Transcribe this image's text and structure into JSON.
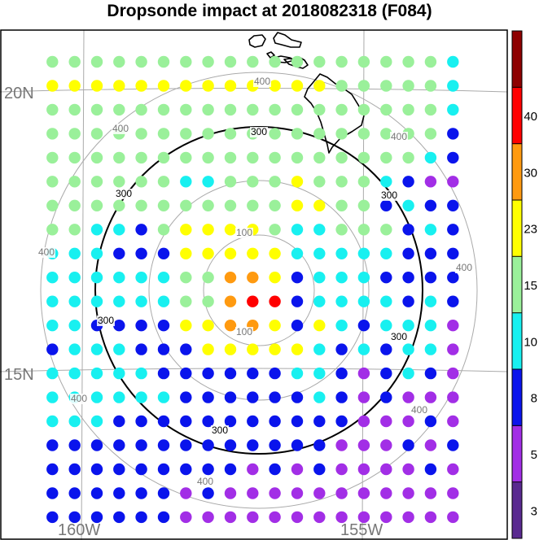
{
  "title": "Dropsonde impact at 2018082318 (F084)",
  "lat_labels": [
    {
      "text": "20N",
      "value": 20
    },
    {
      "text": "15N",
      "value": 15
    }
  ],
  "lon_labels": [
    {
      "text": "160W",
      "value": -160
    },
    {
      "text": "155W",
      "value": -155
    }
  ],
  "range_rings": [
    {
      "label": "100",
      "km": 100
    },
    {
      "label": "200",
      "km": 200
    },
    {
      "label": "300",
      "km": 300
    },
    {
      "label": "400",
      "km": 400
    }
  ],
  "highlight_ring_label": "300",
  "colorbar": {
    "tick_labels": [
      "3",
      "5",
      "8",
      "10",
      "15",
      "23",
      "30",
      "40"
    ],
    "colors": [
      "#5a2a90",
      "#a22ee6",
      "#0a14ec",
      "#18f0f0",
      "#9af09a",
      "#ffff00",
      "#ff9a10",
      "#ff0000",
      "#8e0000"
    ]
  },
  "impact_grid": {
    "rows": 20,
    "cols": 19,
    "cells": [
      ".4444444444444444443",
      ".5555555555555444443",
      ".4444444444444444443",
      ".4444444444444444442",
      ".4444444444444444432",
      ".4444443344454443211",
      ".4444444444455442322",
      ".4433245555433444232",
      ".3332225555533333222",
      ".3333334466523332222",
      ".3333334467723333232",
      ".3322225566525323331",
      ".2333222555553232331",
      ".3333322222233212321",
      ".3333332222223212111",
      ".3332222222222211121",
      ".2222222222222111212",
      ".2222222221212111121",
      ".2222221211111111111",
      ".2222221111111111111"
    ]
  }
}
